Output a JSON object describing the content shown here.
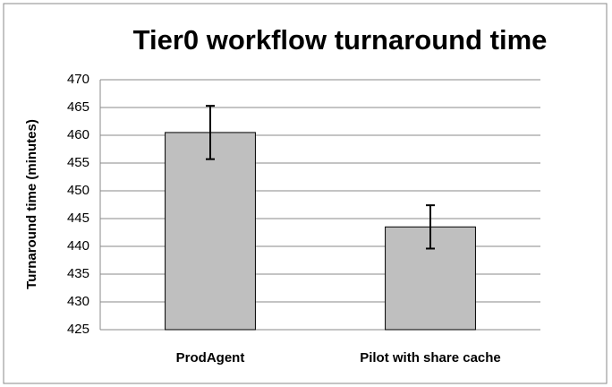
{
  "chart_data": {
    "type": "bar",
    "title": "Tier0 workflow turnaround time",
    "y_label": "Turnaround time (minutes)",
    "categories": [
      "ProdAgent",
      "Pilot with share cache"
    ],
    "values": [
      460.5,
      443.5
    ],
    "errors": [
      4.8,
      3.9
    ],
    "color": "#bfbfbf",
    "ylim": [
      425,
      470
    ],
    "yticks": [
      425,
      430,
      435,
      440,
      445,
      450,
      455,
      460,
      465,
      470
    ],
    "grid": true
  }
}
